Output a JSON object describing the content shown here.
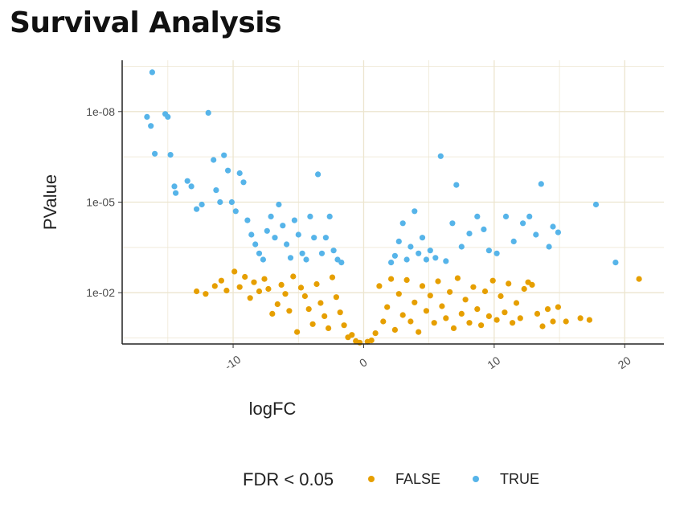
{
  "page": {
    "title": "Survival Analysis"
  },
  "chart_data": {
    "type": "scatter",
    "title": "",
    "xlabel": "logFC",
    "ylabel": "PValue",
    "x_scale": "linear",
    "y_scale": "log10-reversed",
    "xlim": [
      -18.5,
      23
    ],
    "ylim": [
      0.5,
      2e-10
    ],
    "x_ticks": [
      -10,
      0,
      10,
      20
    ],
    "x_tick_labels": [
      "-10",
      "0",
      "10",
      "20"
    ],
    "y_ticks": [
      1e-08,
      1e-05,
      0.01
    ],
    "y_tick_labels": [
      "1e-08",
      "1e-05",
      "1e-02"
    ],
    "grid": true,
    "legend": {
      "title": "FDR < 0.05",
      "placement": "bottom"
    },
    "colors": {
      "FALSE": "#E69F00",
      "TRUE": "#56B4E9"
    },
    "series": [
      {
        "name": "FALSE",
        "color": "#E69F00",
        "points": [
          [
            -12.8,
            0.009
          ],
          [
            -12.1,
            0.011
          ],
          [
            -11.4,
            0.006
          ],
          [
            -10.9,
            0.004
          ],
          [
            -10.5,
            0.0085
          ],
          [
            -9.9,
            0.002
          ],
          [
            -9.5,
            0.0065
          ],
          [
            -9.1,
            0.003
          ],
          [
            -8.7,
            0.015
          ],
          [
            -8.4,
            0.0045
          ],
          [
            -8.0,
            0.009
          ],
          [
            -7.6,
            0.0035
          ],
          [
            -7.3,
            0.0075
          ],
          [
            -7.0,
            0.05
          ],
          [
            -6.6,
            0.024
          ],
          [
            -6.3,
            0.0055
          ],
          [
            -6.0,
            0.011
          ],
          [
            -5.7,
            0.04
          ],
          [
            -5.4,
            0.0029
          ],
          [
            -5.1,
            0.2
          ],
          [
            -4.8,
            0.0068
          ],
          [
            -4.5,
            0.013
          ],
          [
            -4.2,
            0.035
          ],
          [
            -3.9,
            0.11
          ],
          [
            -3.6,
            0.0052
          ],
          [
            -3.3,
            0.022
          ],
          [
            -3.0,
            0.06
          ],
          [
            -2.7,
            0.15
          ],
          [
            -2.4,
            0.0031
          ],
          [
            -2.1,
            0.014
          ],
          [
            -1.8,
            0.045
          ],
          [
            -1.5,
            0.12
          ],
          [
            -1.2,
            0.3
          ],
          [
            -0.9,
            0.25
          ],
          [
            -0.6,
            0.4
          ],
          [
            -0.3,
            0.45
          ],
          [
            0.3,
            0.42
          ],
          [
            0.6,
            0.38
          ],
          [
            0.9,
            0.22
          ],
          [
            1.2,
            0.006
          ],
          [
            1.5,
            0.09
          ],
          [
            1.8,
            0.03
          ],
          [
            2.1,
            0.0035
          ],
          [
            2.4,
            0.17
          ],
          [
            2.7,
            0.011
          ],
          [
            3.0,
            0.055
          ],
          [
            3.3,
            0.0038
          ],
          [
            3.6,
            0.09
          ],
          [
            3.9,
            0.021
          ],
          [
            4.2,
            0.2
          ],
          [
            4.5,
            0.006
          ],
          [
            4.8,
            0.04
          ],
          [
            5.1,
            0.0125
          ],
          [
            5.4,
            0.1
          ],
          [
            5.7,
            0.0042
          ],
          [
            6.0,
            0.028
          ],
          [
            6.3,
            0.07
          ],
          [
            6.6,
            0.0095
          ],
          [
            6.9,
            0.15
          ],
          [
            7.2,
            0.0033
          ],
          [
            7.5,
            0.05
          ],
          [
            7.8,
            0.017
          ],
          [
            8.1,
            0.1
          ],
          [
            8.4,
            0.0065
          ],
          [
            8.7,
            0.035
          ],
          [
            9.0,
            0.12
          ],
          [
            9.3,
            0.009
          ],
          [
            9.6,
            0.06
          ],
          [
            9.9,
            0.004
          ],
          [
            10.2,
            0.08
          ],
          [
            10.5,
            0.013
          ],
          [
            10.8,
            0.045
          ],
          [
            11.1,
            0.005
          ],
          [
            11.4,
            0.1
          ],
          [
            11.7,
            0.022
          ],
          [
            12.0,
            0.07
          ],
          [
            12.3,
            0.0075
          ],
          [
            12.6,
            0.0045
          ],
          [
            12.9,
            0.0055
          ],
          [
            13.3,
            0.05
          ],
          [
            13.7,
            0.13
          ],
          [
            14.1,
            0.035
          ],
          [
            14.5,
            0.09
          ],
          [
            14.9,
            0.03
          ],
          [
            15.5,
            0.09
          ],
          [
            16.6,
            0.07
          ],
          [
            17.3,
            0.08
          ],
          [
            21.1,
            0.0035
          ]
        ]
      },
      {
        "name": "TRUE",
        "color": "#56B4E9",
        "points": [
          [
            -16.2,
            5e-10
          ],
          [
            -16.6,
            1.5e-08
          ],
          [
            -16.3,
            3e-08
          ],
          [
            -16.0,
            2.5e-07
          ],
          [
            -15.2,
            1.2e-08
          ],
          [
            -15.0,
            1.5e-08
          ],
          [
            -14.8,
            2.7e-07
          ],
          [
            -14.5,
            3e-06
          ],
          [
            -14.4,
            5e-06
          ],
          [
            -13.5,
            2e-06
          ],
          [
            -13.2,
            3e-06
          ],
          [
            -12.8,
            1.7e-05
          ],
          [
            -12.4,
            1.2e-05
          ],
          [
            -11.9,
            1.1e-08
          ],
          [
            -11.5,
            4e-07
          ],
          [
            -11.3,
            4e-06
          ],
          [
            -11.0,
            1e-05
          ],
          [
            -10.7,
            2.8e-07
          ],
          [
            -10.4,
            9e-07
          ],
          [
            -10.1,
            1e-05
          ],
          [
            -9.8,
            2e-05
          ],
          [
            -9.5,
            1.1e-06
          ],
          [
            -9.2,
            2.2e-06
          ],
          [
            -8.9,
            4e-05
          ],
          [
            -8.6,
            0.00012
          ],
          [
            -8.3,
            0.00025
          ],
          [
            -8.0,
            0.0005
          ],
          [
            -7.7,
            0.0008
          ],
          [
            -7.4,
            9e-05
          ],
          [
            -7.1,
            3e-05
          ],
          [
            -6.8,
            0.00015
          ],
          [
            -6.5,
            1.2e-05
          ],
          [
            -6.2,
            6e-05
          ],
          [
            -5.9,
            0.00025
          ],
          [
            -5.6,
            0.0007
          ],
          [
            -5.3,
            4e-05
          ],
          [
            -5.0,
            0.00012
          ],
          [
            -4.7,
            0.0005
          ],
          [
            -4.4,
            0.0008
          ],
          [
            -4.1,
            3e-05
          ],
          [
            -3.8,
            0.00015
          ],
          [
            -3.5,
            1.2e-06
          ],
          [
            -3.2,
            0.0005
          ],
          [
            -2.9,
            0.00015
          ],
          [
            -2.6,
            3e-05
          ],
          [
            -2.3,
            0.0004
          ],
          [
            -2.0,
            0.0008
          ],
          [
            -1.7,
            0.001
          ],
          [
            2.1,
            0.001
          ],
          [
            2.4,
            0.0006
          ],
          [
            2.7,
            0.0002
          ],
          [
            3.0,
            5e-05
          ],
          [
            3.3,
            0.0008
          ],
          [
            3.6,
            0.0003
          ],
          [
            3.9,
            2e-05
          ],
          [
            4.2,
            0.0005
          ],
          [
            4.5,
            0.00015
          ],
          [
            4.8,
            0.0008
          ],
          [
            5.1,
            0.0004
          ],
          [
            5.5,
            0.0007
          ],
          [
            5.9,
            3e-07
          ],
          [
            6.3,
            0.0009
          ],
          [
            6.8,
            5e-05
          ],
          [
            7.1,
            2.7e-06
          ],
          [
            7.5,
            0.0003
          ],
          [
            8.1,
            0.00011
          ],
          [
            8.7,
            3e-05
          ],
          [
            9.2,
            8e-05
          ],
          [
            9.6,
            0.0004
          ],
          [
            10.2,
            0.0005
          ],
          [
            10.9,
            3e-05
          ],
          [
            11.5,
            0.0002
          ],
          [
            12.2,
            5e-05
          ],
          [
            12.7,
            3e-05
          ],
          [
            13.2,
            0.00012
          ],
          [
            13.6,
            2.5e-06
          ],
          [
            14.2,
            0.0003
          ],
          [
            14.5,
            6.5e-05
          ],
          [
            14.9,
            0.0001
          ],
          [
            17.8,
            1.2e-05
          ],
          [
            19.3,
            0.001
          ]
        ]
      }
    ]
  }
}
